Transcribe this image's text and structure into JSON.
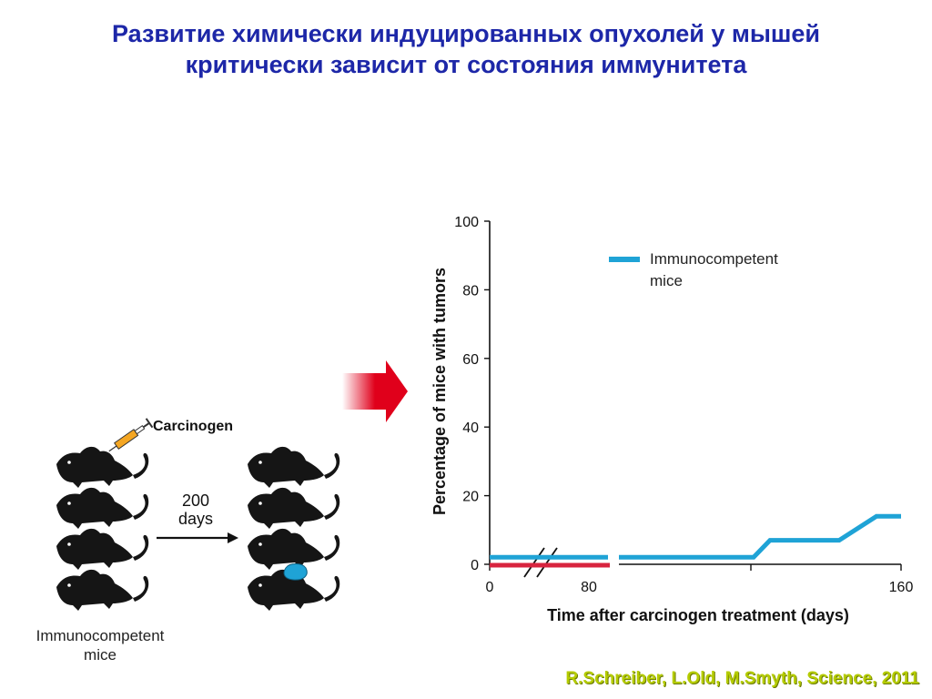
{
  "title": {
    "line1": "Развитие химически индуцированных опухолей у мышей",
    "line2": "критически зависит от состояния иммунитета"
  },
  "citation": "R.Schreiber, L.Old, M.Smyth, Science, 2011",
  "diagram": {
    "carcinogen_label": "Carcinogen",
    "days_label_line1": "200",
    "days_label_line2": "days",
    "mice_caption_line1": "Immunocompetent",
    "mice_caption_line2": "mice"
  },
  "chart_data": {
    "type": "line",
    "xlabel": "Time after carcinogen treatment (days)",
    "ylabel": "Percentage of mice with tumors",
    "ylim": [
      0,
      100
    ],
    "y_ticks": [
      "0",
      "20",
      "40",
      "60",
      "80",
      "100"
    ],
    "x_tick_labels": [
      "0",
      "80",
      "160"
    ],
    "axis_break": true,
    "legend_entry_line1": "Immunocompetent",
    "legend_entry_line2": "mice",
    "legend_position": "top-right",
    "colors": {
      "immunocompetent": "#1fa3d6",
      "second_series": "#d8243f",
      "arrow": "#e0001b"
    },
    "series": [
      {
        "name": "Immunocompetent mice",
        "color": "#1fa3d6",
        "x": [
          0,
          40,
          80,
          100,
          110,
          130,
          150,
          160
        ],
        "y": [
          1,
          1,
          1,
          1,
          7,
          7,
          14,
          14
        ]
      },
      {
        "color": "#d8243f",
        "x": [
          0,
          40
        ],
        "y": [
          0,
          0
        ]
      }
    ]
  }
}
